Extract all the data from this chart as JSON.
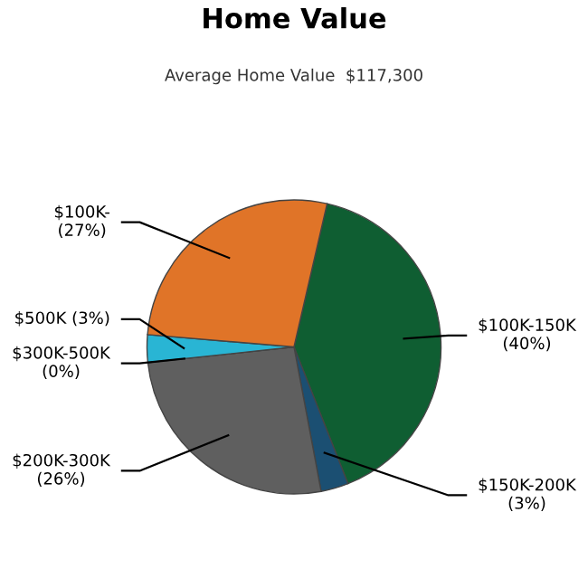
{
  "chart_data": {
    "type": "pie",
    "title": "Home Value",
    "subtitle": "Average Home Value  $117,300",
    "categories": [
      "$100K-150K",
      "$150K-200K",
      "$200K-300K",
      "$300K-500K",
      "$500K",
      "$100K-"
    ],
    "values": [
      40,
      3,
      26,
      0,
      3,
      27
    ],
    "value_labels": [
      "(40%)",
      "(3%)",
      "(26%)",
      "(0%)",
      "(3%)",
      "(27%)"
    ],
    "colors": [
      "#0f5e32",
      "#1b4f72",
      "#5f5f5f",
      "#3a7fa0",
      "#29b5d4",
      "#e07428"
    ]
  }
}
